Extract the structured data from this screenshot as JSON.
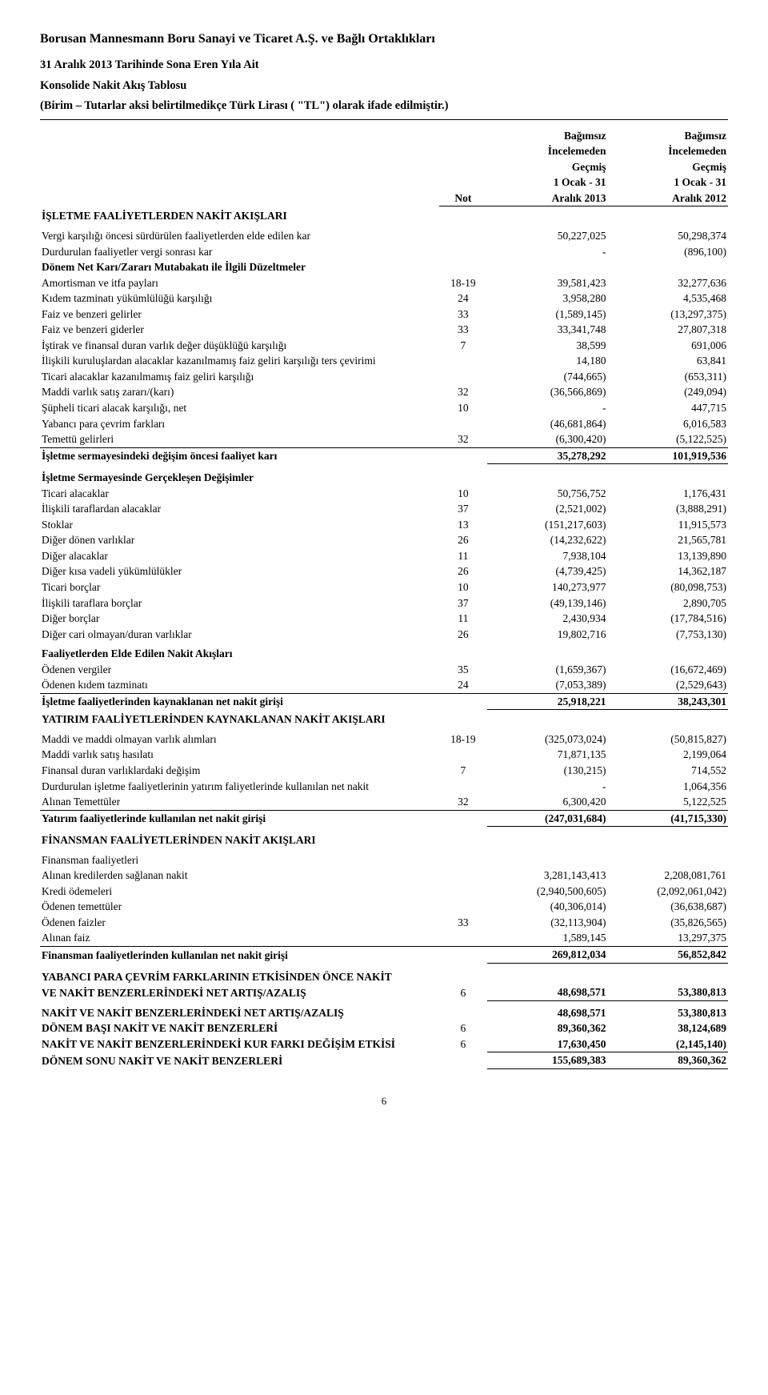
{
  "header": {
    "company": "Borusan Mannesmann Boru Sanayi ve Ticaret A.Ş. ve Bağlı Ortaklıkları",
    "line1": "31 Aralık 2013 Tarihinde Sona Eren Yıla Ait",
    "line2": "Konsolide Nakit Akış Tablosu",
    "line3": "(Birim – Tutarlar aksi belirtilmedikçe Türk Lirası ( \"TL\") olarak ifade edilmiştir.)"
  },
  "colheaders": {
    "note": "Not",
    "c1_l1": "Bağımsız",
    "c1_l2": "İncelemeden",
    "c1_l3": "Geçmiş",
    "c1_l4": "1 Ocak - 31",
    "c1_l5": "Aralık 2013",
    "c2_l1": "Bağımsız",
    "c2_l2": "İncelemeden",
    "c2_l3": "Geçmiş",
    "c2_l4": "1 Ocak - 31",
    "c2_l5": "Aralık 2012"
  },
  "s1": {
    "title": "İŞLETME FAALİYETLERDEN NAKİT AKIŞLARI",
    "r1": {
      "d": "Vergi karşılığı öncesi sürdürülen faaliyetlerden elde edilen kar",
      "n": "",
      "v1": "50,227,025",
      "v2": "50,298,374"
    },
    "r2": {
      "d": "Durdurulan faaliyetler vergi sonrası kar",
      "n": "",
      "v1": "-",
      "v2": "(896,100)"
    },
    "t2": "Dönem Net Karı/Zararı Mutabakatı ile İlgili Düzeltmeler",
    "r3": {
      "d": "Amortisman ve itfa payları",
      "n": "18-19",
      "v1": "39,581,423",
      "v2": "32,277,636"
    },
    "r4": {
      "d": "Kıdem tazminatı yükümlülüğü karşılığı",
      "n": "24",
      "v1": "3,958,280",
      "v2": "4,535,468"
    },
    "r5": {
      "d": "Faiz ve benzeri gelirler",
      "n": "33",
      "v1": "(1,589,145)",
      "v2": "(13,297,375)"
    },
    "r6": {
      "d": "Faiz ve benzeri giderler",
      "n": "33",
      "v1": "33,341,748",
      "v2": "27,807,318"
    },
    "r7": {
      "d": "İştirak ve finansal duran varlık değer düşüklüğü karşılığı",
      "n": "7",
      "v1": "38,599",
      "v2": "691,006"
    },
    "r8": {
      "d": "İlişkili kuruluşlardan alacaklar kazanılmamış faiz geliri karşılığı ters çevirimi",
      "n": "",
      "v1": "14,180",
      "v2": "63,841"
    },
    "r9": {
      "d": "Ticari alacaklar kazanılmamış faiz geliri karşılığı",
      "n": "",
      "v1": "(744,665)",
      "v2": "(653,311)"
    },
    "r10": {
      "d": "Maddi varlık satış zararı/(karı)",
      "n": "32",
      "v1": "(36,566,869)",
      "v2": "(249,094)"
    },
    "r11": {
      "d": "Şüpheli ticari alacak karşılığı, net",
      "n": "10",
      "v1": "-",
      "v2": "447,715"
    },
    "r12": {
      "d": "Yabancı para çevrim farkları",
      "n": "",
      "v1": "(46,681,864)",
      "v2": "6,016,583"
    },
    "r13": {
      "d": "Temettü gelirleri",
      "n": "32",
      "v1": "(6,300,420)",
      "v2": "(5,122,525)"
    },
    "sub1": {
      "d": "İşletme sermayesindeki değişim öncesi faaliyet karı",
      "n": "",
      "v1": "35,278,292",
      "v2": "101,919,536"
    }
  },
  "s2": {
    "title": "İşletme Sermayesinde Gerçekleşen Değişimler",
    "r1": {
      "d": "Ticari alacaklar",
      "n": "10",
      "v1": "50,756,752",
      "v2": "1,176,431"
    },
    "r2": {
      "d": "İlişkili taraflardan alacaklar",
      "n": "37",
      "v1": "(2,521,002)",
      "v2": "(3,888,291)"
    },
    "r3": {
      "d": "Stoklar",
      "n": "13",
      "v1": "(151,217,603)",
      "v2": "11,915,573"
    },
    "r4": {
      "d": "Diğer dönen varlıklar",
      "n": "26",
      "v1": "(14,232,622)",
      "v2": "21,565,781"
    },
    "r5": {
      "d": "Diğer alacaklar",
      "n": "11",
      "v1": "7,938,104",
      "v2": "13,139,890"
    },
    "r6": {
      "d": "Diğer kısa vadeli yükümlülükler",
      "n": "26",
      "v1": "(4,739,425)",
      "v2": "14,362,187"
    },
    "r7": {
      "d": "Ticari borçlar",
      "n": "10",
      "v1": "140,273,977",
      "v2": "(80,098,753)"
    },
    "r8": {
      "d": "İlişkili taraflara borçlar",
      "n": "37",
      "v1": "(49,139,146)",
      "v2": "2,890,705"
    },
    "r9": {
      "d": "Diğer borçlar",
      "n": "11",
      "v1": "2,430,934",
      "v2": "(17,784,516)"
    },
    "r10": {
      "d": "Diğer cari olmayan/duran varlıklar",
      "n": "26",
      "v1": "19,802,716",
      "v2": "(7,753,130)"
    }
  },
  "s3": {
    "title": "Faaliyetlerden Elde Edilen Nakit Akışları",
    "r1": {
      "d": "Ödenen vergiler",
      "n": "35",
      "v1": "(1,659,367)",
      "v2": "(16,672,469)"
    },
    "r2": {
      "d": "Ödenen kıdem tazminatı",
      "n": "24",
      "v1": "(7,053,389)",
      "v2": "(2,529,643)"
    },
    "sub": {
      "d": "İşletme faaliyetlerinden kaynaklanan net nakit girişi",
      "n": "",
      "v1": "25,918,221",
      "v2": "38,243,301"
    }
  },
  "s4": {
    "title": "YATIRIM FAALİYETLERİNDEN KAYNAKLANAN NAKİT AKIŞLARI",
    "r1": {
      "d": "Maddi ve maddi olmayan varlık alımları",
      "n": "18-19",
      "v1": "(325,073,024)",
      "v2": "(50,815,827)"
    },
    "r2": {
      "d": "Maddi varlık satış hasılatı",
      "n": "",
      "v1": "71,871,135",
      "v2": "2,199,064"
    },
    "r3": {
      "d": "Finansal duran varlıklardaki değişim",
      "n": "7",
      "v1": "(130,215)",
      "v2": "714,552"
    },
    "r4": {
      "d": "Durdurulan işletme faaliyetlerinin yatırım faliyetlerinde kullanılan net nakit",
      "n": "",
      "v1": "-",
      "v2": "1,064,356"
    },
    "r5": {
      "d": "Alınan Temettüler",
      "n": "32",
      "v1": "6,300,420",
      "v2": "5,122,525"
    },
    "sub": {
      "d": "Yatırım faaliyetlerinde kullanılan net nakit girişi",
      "n": "",
      "v1": "(247,031,684)",
      "v2": "(41,715,330)"
    }
  },
  "s5": {
    "title": "FİNANSMAN FAALİYETLERİNDEN NAKİT AKIŞLARI",
    "sub_t": "Finansman faaliyetleri",
    "r1": {
      "d": "Alınan kredilerden sağlanan nakit",
      "n": "",
      "v1": "3,281,143,413",
      "v2": "2,208,081,761"
    },
    "r2": {
      "d": "Kredi ödemeleri",
      "n": "",
      "v1": "(2,940,500,605)",
      "v2": "(2,092,061,042)"
    },
    "r3": {
      "d": "Ödenen temettüler",
      "n": "",
      "v1": "(40,306,014)",
      "v2": "(36,638,687)"
    },
    "r4": {
      "d": "Ödenen faizler",
      "n": "33",
      "v1": "(32,113,904)",
      "v2": "(35,826,565)"
    },
    "r5": {
      "d": "Alınan faiz",
      "n": "",
      "v1": "1,589,145",
      "v2": "13,297,375"
    },
    "sub": {
      "d": "Finansman faaliyetlerinden kullanılan net nakit girişi",
      "n": "",
      "v1": "269,812,034",
      "v2": "56,852,842"
    }
  },
  "s6": {
    "r1a": {
      "d": "YABANCI PARA ÇEVRİM FARKLARININ ETKİSİNDEN ÖNCE NAKİT"
    },
    "r1b": {
      "d": "VE NAKİT BENZERLERİNDEKİ NET ARTIŞ/AZALIŞ",
      "n": "6",
      "v1": "48,698,571",
      "v2": "53,380,813"
    },
    "r2": {
      "d": "NAKİT VE NAKİT BENZERLERİNDEKİ NET ARTIŞ/AZALIŞ",
      "n": "",
      "v1": "48,698,571",
      "v2": "53,380,813"
    },
    "r3": {
      "d": "DÖNEM BAŞI NAKİT VE NAKİT BENZERLERİ",
      "n": "6",
      "v1": "89,360,362",
      "v2": "38,124,689"
    },
    "r4": {
      "d": "NAKİT VE NAKİT BENZERLERİNDEKİ KUR FARKI DEĞİŞİM ETKİSİ",
      "n": "6",
      "v1": "17,630,450",
      "v2": "(2,145,140)"
    },
    "r5": {
      "d": "DÖNEM SONU NAKİT VE NAKİT BENZERLERİ",
      "n": "",
      "v1": "155,689,383",
      "v2": "89,360,362"
    }
  },
  "footer": {
    "page": "6"
  }
}
